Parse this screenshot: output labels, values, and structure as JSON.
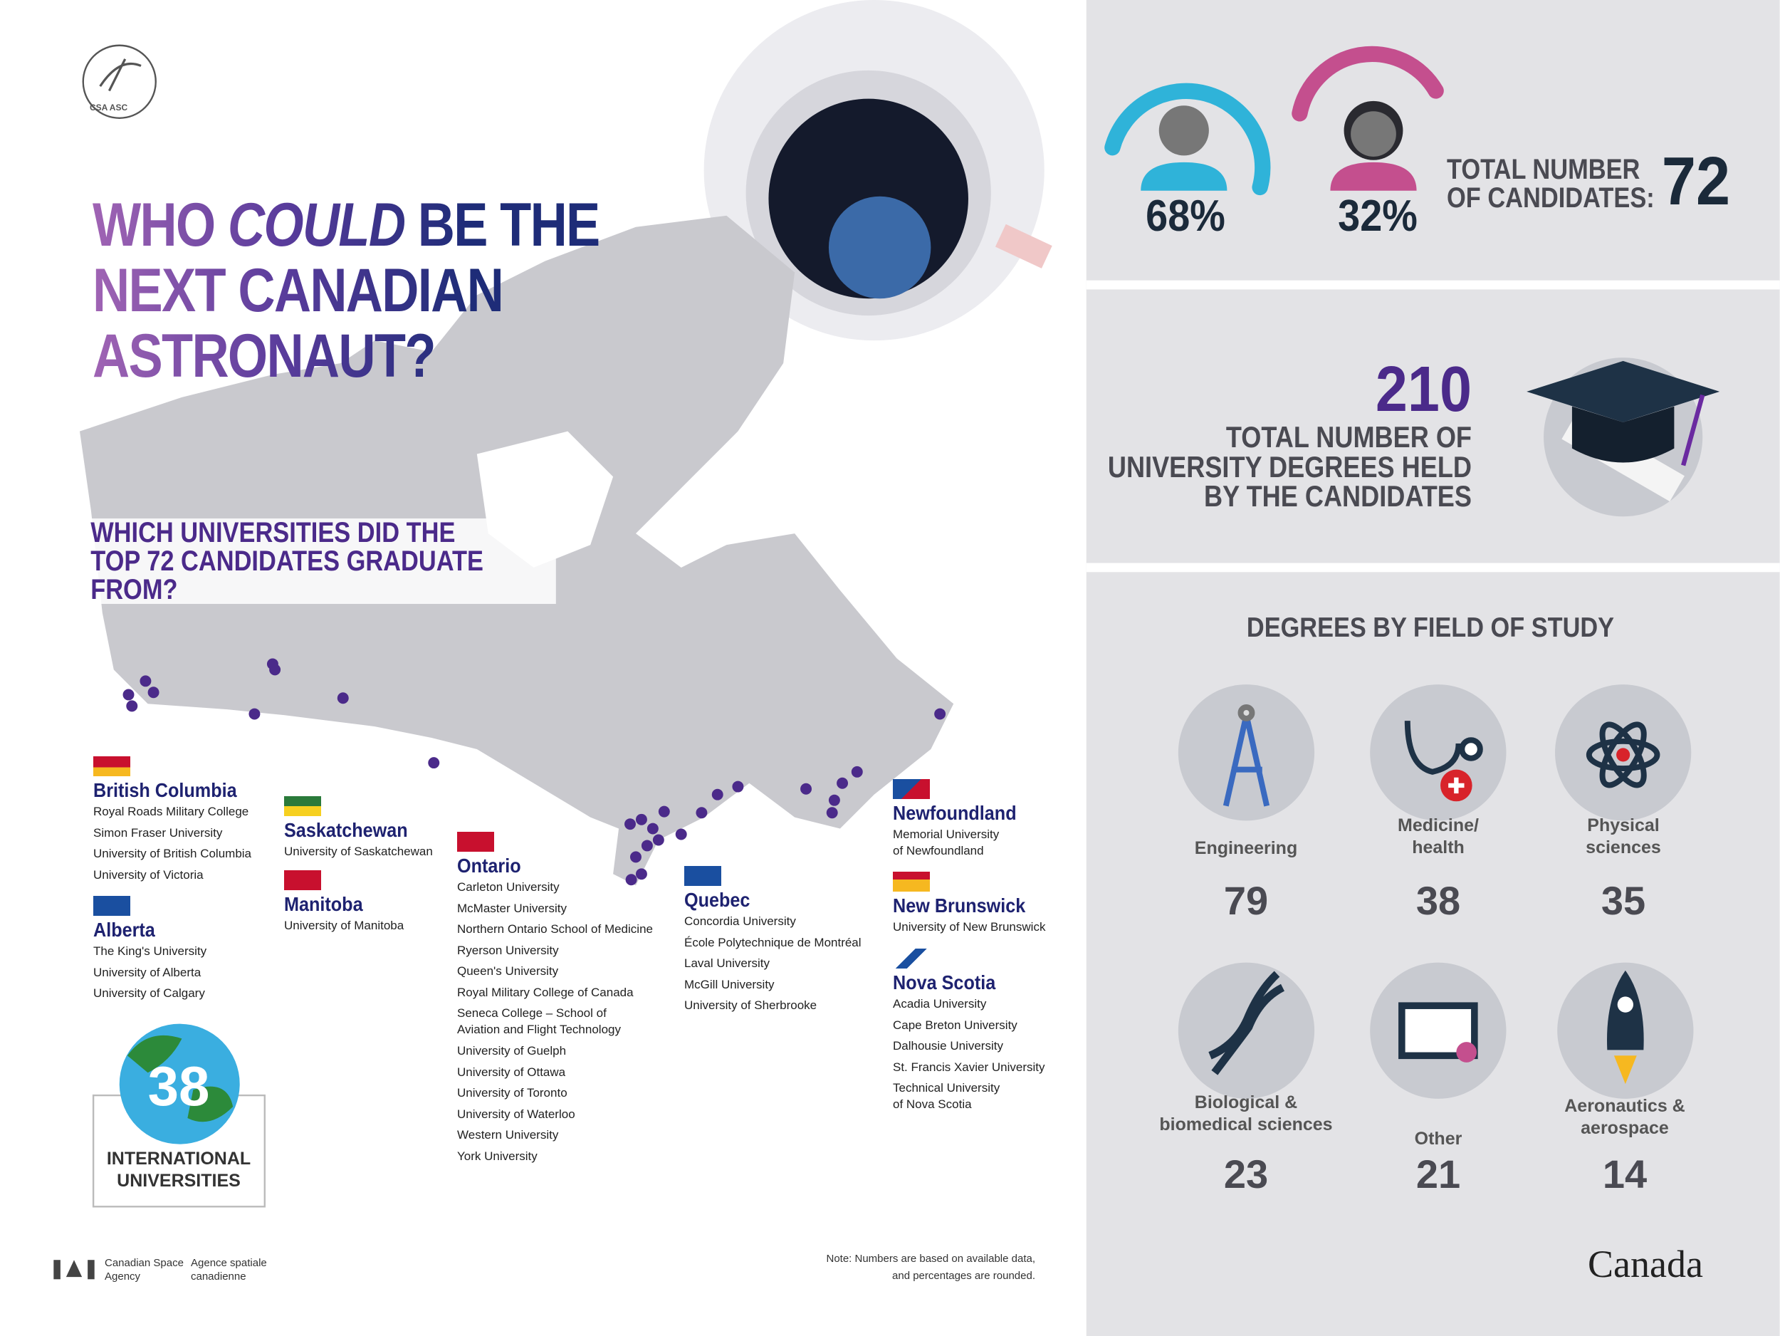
{
  "logo": "CSA ASC",
  "title": {
    "before": "WHO",
    "emphasis": "COULD",
    "after": "BE THE NEXT CANADIAN ASTRONAUT?"
  },
  "map_question": "WHICH UNIVERSITIES DID THE\nTOP 72 CANDIDATES GRADUATE FROM?",
  "provinces": [
    {
      "name": "British Columbia",
      "universities": [
        "Royal Roads Military College",
        "Simon Fraser University",
        "University of British Columbia",
        "University of Victoria"
      ]
    },
    {
      "name": "Alberta",
      "universities": [
        "The King's University",
        "University of Alberta",
        "University of Calgary"
      ]
    },
    {
      "name": "Saskatchewan",
      "universities": [
        "University of Saskatchewan"
      ]
    },
    {
      "name": "Manitoba",
      "universities": [
        "University of Manitoba"
      ]
    },
    {
      "name": "Ontario",
      "universities": [
        "Carleton University",
        "McMaster University",
        "Northern Ontario School of Medicine",
        "Ryerson University",
        "Queen's University",
        "Royal Military College of Canada",
        "Seneca College – School of\nAviation and Flight Technology",
        "University of Guelph",
        "University of Ottawa",
        "University of Toronto",
        "University of Waterloo",
        "Western University",
        "York University"
      ]
    },
    {
      "name": "Quebec",
      "universities": [
        "Concordia University",
        "École Polytechnique de Montréal",
        "Laval University",
        "McGill University",
        "University of Sherbrooke"
      ]
    },
    {
      "name": "Newfoundland",
      "universities": [
        "Memorial University\nof Newfoundland"
      ]
    },
    {
      "name": "New Brunswick",
      "universities": [
        "University of New Brunswick"
      ]
    },
    {
      "name": "Nova Scotia",
      "universities": [
        "Acadia University",
        "Cape Breton University",
        "Dalhousie University",
        "St. Francis Xavier University",
        "Technical University\nof Nova Scotia"
      ]
    }
  ],
  "international": {
    "count": "38",
    "label": "INTERNATIONAL\nUNIVERSITIES"
  },
  "gender": {
    "male": "68%",
    "female": "32%"
  },
  "total_candidates": {
    "label": "TOTAL NUMBER\nOF CANDIDATES:",
    "value": "72"
  },
  "degrees": {
    "value": "210",
    "label": "TOTAL NUMBER OF\nUNIVERSITY DEGREES HELD\nBY THE CANDIDATES"
  },
  "fields": {
    "title": "DEGREES BY FIELD OF STUDY",
    "items": [
      {
        "name": "Engineering",
        "value": "79"
      },
      {
        "name": "Medicine/\nhealth",
        "value": "38"
      },
      {
        "name": "Physical\nsciences",
        "value": "35"
      },
      {
        "name": "Biological &\nbiomedical sciences",
        "value": "23"
      },
      {
        "name": "Other",
        "value": "21"
      },
      {
        "name": "Aeronautics &\naerospace",
        "value": "14"
      }
    ]
  },
  "footer": {
    "agency_en": "Canadian Space\nAgency",
    "agency_fr": "Agence spatiale\ncanadienne",
    "note": "Note: Numbers are based on available data,\nand percentages are rounded.",
    "wordmark": "Canada"
  }
}
